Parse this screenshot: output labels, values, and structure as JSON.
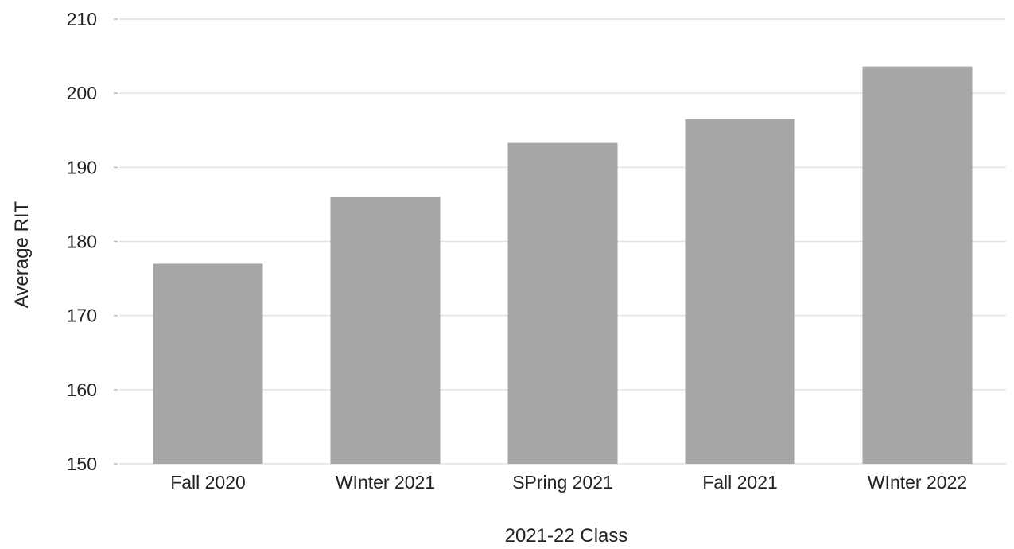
{
  "chart_data": {
    "type": "bar",
    "categories": [
      "Fall 2020",
      "WInter 2021",
      "SPring 2021",
      "Fall 2021",
      "WInter 2022"
    ],
    "values": [
      177,
      186,
      193.3,
      196.5,
      203.6
    ],
    "xlabel": "2021-22 Class",
    "ylabel": "Average RIT",
    "ylim": [
      150,
      210
    ],
    "yticks": [
      150,
      160,
      170,
      180,
      190,
      200,
      210
    ],
    "ytick_labels": [
      "150",
      "160",
      "170",
      "180",
      "190",
      "200",
      "210"
    ],
    "grid": true,
    "legend": false,
    "bar_color": "#a6a6a6",
    "grid_color": "#e2e2e2"
  }
}
